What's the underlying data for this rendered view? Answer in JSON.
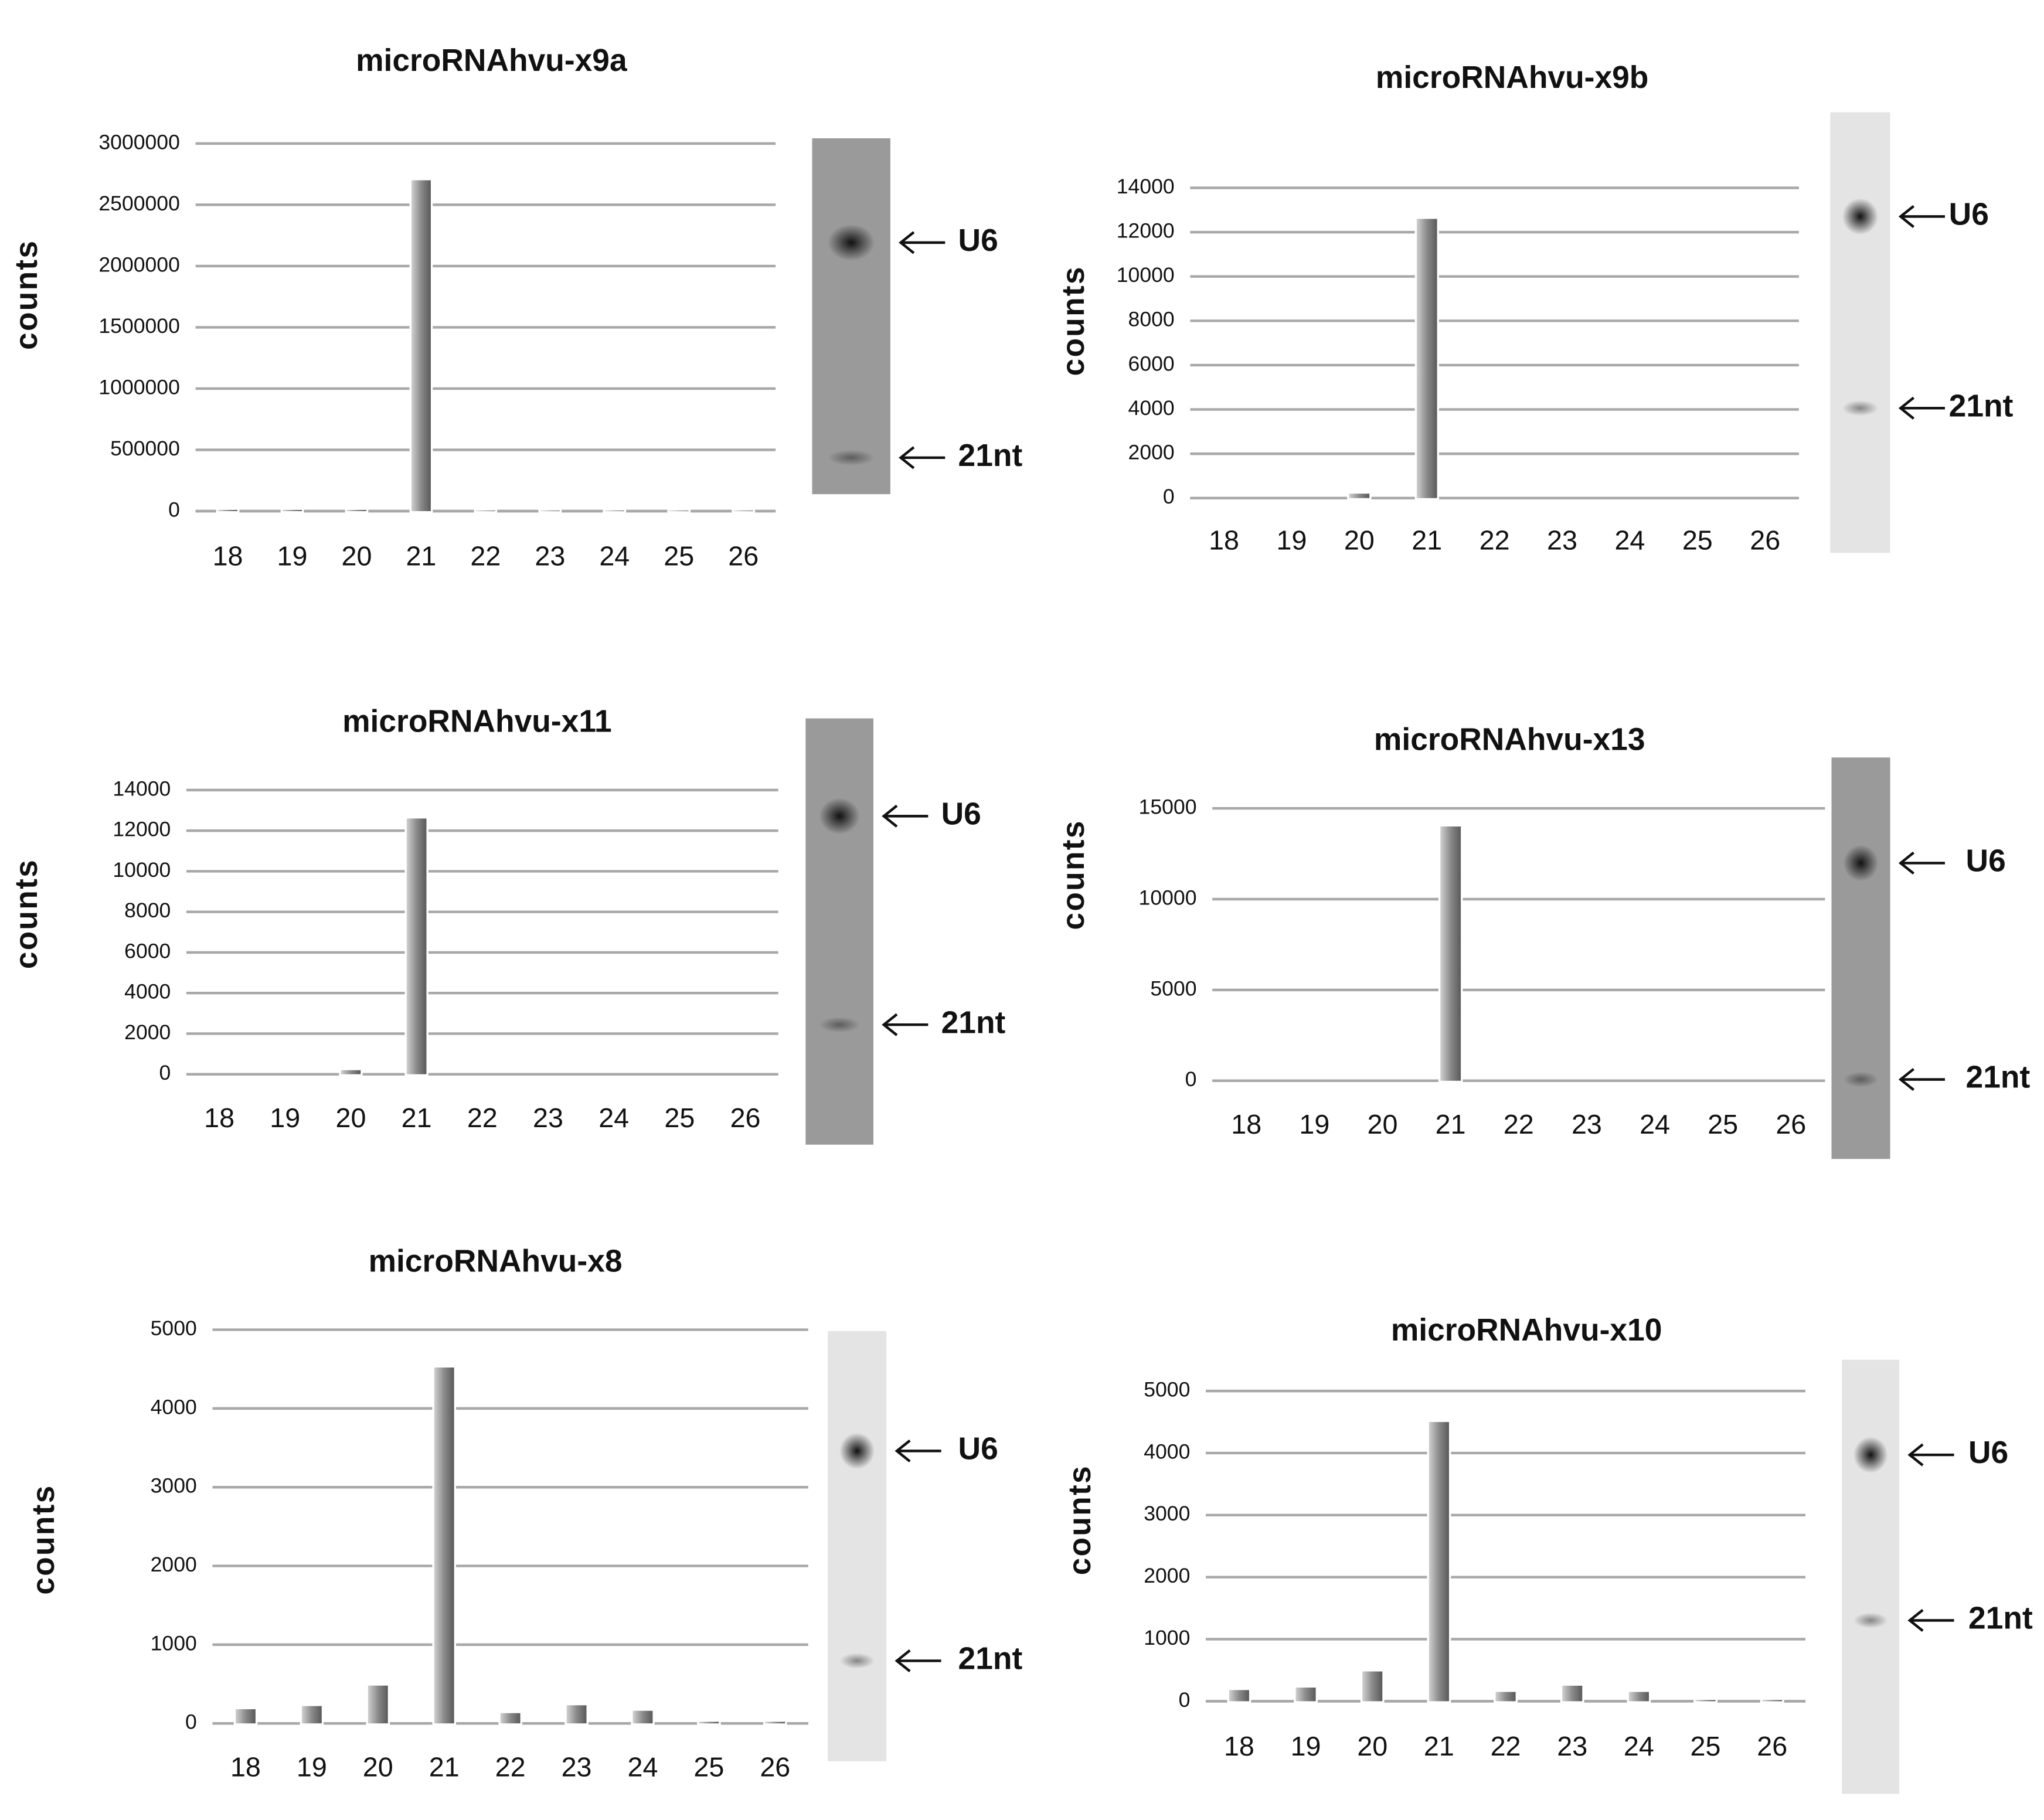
{
  "chart_data": [
    {
      "type": "bar",
      "title": "microRNAhvu-x9a",
      "y_label": "counts",
      "categories": [
        "18",
        "19",
        "20",
        "21",
        "22",
        "23",
        "24",
        "25",
        "26"
      ],
      "values": [
        10000,
        10000,
        10000,
        2700000,
        5000,
        5000,
        5000,
        5000,
        5000
      ],
      "ylim": [
        0,
        3000000
      ],
      "yticks": [
        0,
        500000,
        1000000,
        1500000,
        2000000,
        2500000,
        3000000
      ],
      "grid": true,
      "color": "#8a8a8a",
      "gel_labels": [
        "U6",
        "21nt"
      ]
    },
    {
      "type": "bar",
      "title": "microRNAhvu-x9b",
      "y_label": "counts",
      "categories": [
        "18",
        "19",
        "20",
        "21",
        "22",
        "23",
        "24",
        "25",
        "26"
      ],
      "values": [
        0,
        0,
        200,
        12600,
        0,
        0,
        0,
        0,
        0
      ],
      "ylim": [
        0,
        14000
      ],
      "yticks": [
        0,
        2000,
        4000,
        6000,
        8000,
        10000,
        12000,
        14000
      ],
      "grid": true,
      "color": "#8a8a8a",
      "gel_labels": [
        "U6",
        "21nt"
      ]
    },
    {
      "type": "bar",
      "title": "microRNAhvu-x11",
      "y_label": "counts",
      "categories": [
        "18",
        "19",
        "20",
        "21",
        "22",
        "23",
        "24",
        "25",
        "26"
      ],
      "values": [
        0,
        0,
        200,
        12600,
        0,
        0,
        0,
        0,
        0
      ],
      "ylim": [
        0,
        14000
      ],
      "yticks": [
        0,
        2000,
        4000,
        6000,
        8000,
        10000,
        12000,
        14000
      ],
      "grid": true,
      "color": "#8a8a8a",
      "gel_labels": [
        "U6",
        "21nt"
      ]
    },
    {
      "type": "bar",
      "title": "microRNAhvu-x13",
      "y_label": "counts",
      "categories": [
        "18",
        "19",
        "20",
        "21",
        "22",
        "23",
        "24",
        "25",
        "26"
      ],
      "values": [
        0,
        0,
        0,
        14000,
        0,
        0,
        0,
        0,
        0
      ],
      "ylim": [
        0,
        15000
      ],
      "yticks": [
        0,
        5000,
        10000,
        15000
      ],
      "grid": true,
      "color": "#8a8a8a",
      "gel_labels": [
        "U6",
        "21nt"
      ]
    },
    {
      "type": "bar",
      "title": "microRNAhvu-x8",
      "y_label": "counts",
      "categories": [
        "18",
        "19",
        "20",
        "21",
        "22",
        "23",
        "24",
        "25",
        "26"
      ],
      "values": [
        180,
        220,
        480,
        4520,
        130,
        230,
        160,
        20,
        20
      ],
      "ylim": [
        0,
        5000
      ],
      "yticks": [
        0,
        1000,
        2000,
        3000,
        4000,
        5000
      ],
      "grid": true,
      "color": "#8a8a8a",
      "gel_labels": [
        "U6",
        "21nt"
      ]
    },
    {
      "type": "bar",
      "title": "microRNAhvu-x10",
      "y_label": "counts",
      "categories": [
        "18",
        "19",
        "20",
        "21",
        "22",
        "23",
        "24",
        "25",
        "26"
      ],
      "values": [
        180,
        220,
        480,
        4500,
        150,
        250,
        150,
        20,
        20
      ],
      "ylim": [
        0,
        5000
      ],
      "yticks": [
        0,
        1000,
        2000,
        3000,
        4000,
        5000
      ],
      "grid": true,
      "color": "#8a8a8a",
      "gel_labels": [
        "U6",
        "21nt"
      ]
    }
  ]
}
